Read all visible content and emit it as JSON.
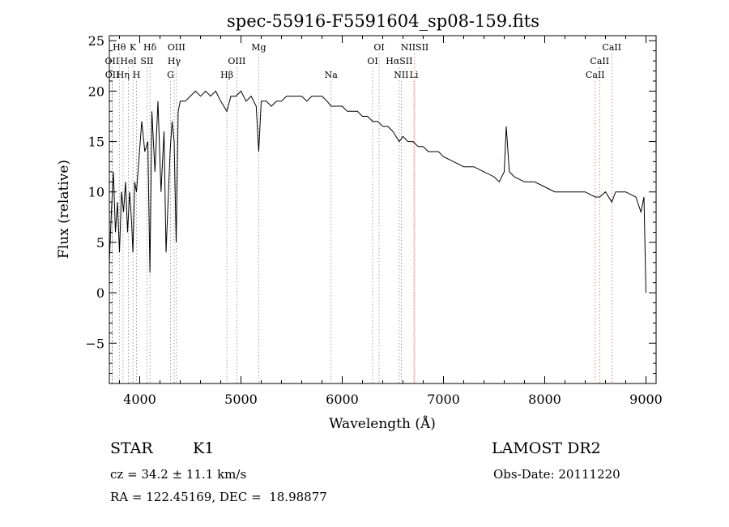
{
  "chart_data": {
    "type": "line",
    "title": "spec-55916-F5591604_sp08-159.fits",
    "xlabel": "Wavelength (Å)",
    "ylabel": "Flux (relative)",
    "xlim": [
      3700,
      9100
    ],
    "ylim": [
      -9,
      25.5
    ],
    "xticks": [
      4000,
      5000,
      6000,
      7000,
      8000,
      9000
    ],
    "yticks": [
      -5,
      0,
      5,
      10,
      15,
      20,
      25
    ],
    "grid": false,
    "series": [
      {
        "x": [
          3700,
          3720,
          3740,
          3760,
          3780,
          3800,
          3820,
          3840,
          3860,
          3880,
          3900,
          3920,
          3933,
          3950,
          3968,
          3990,
          4020,
          4050,
          4080,
          4101,
          4120,
          4150,
          4180,
          4210,
          4240,
          4260,
          4280,
          4300,
          4320,
          4340,
          4360,
          4380,
          4400,
          4450,
          4500,
          4550,
          4600,
          4650,
          4700,
          4750,
          4800,
          4861,
          4900,
          4950,
          5000,
          5050,
          5100,
          5150,
          5175,
          5200,
          5250,
          5300,
          5350,
          5400,
          5450,
          5500,
          5550,
          5600,
          5650,
          5700,
          5750,
          5800,
          5850,
          5890,
          5950,
          6000,
          6050,
          6100,
          6150,
          6200,
          6250,
          6300,
          6350,
          6400,
          6450,
          6500,
          6563,
          6600,
          6650,
          6700,
          6750,
          6800,
          6850,
          6900,
          6950,
          7000,
          7100,
          7200,
          7300,
          7400,
          7500,
          7550,
          7600,
          7620,
          7650,
          7700,
          7800,
          7900,
          8000,
          8100,
          8200,
          8300,
          8400,
          8498,
          8542,
          8600,
          8662,
          8700,
          8800,
          8900,
          8950,
          8980,
          9000
        ],
        "y": [
          3,
          8,
          12,
          6,
          9,
          4,
          10,
          8,
          11,
          6,
          10,
          7,
          4,
          11,
          10,
          13,
          17,
          14,
          15,
          2,
          18,
          12,
          19,
          10,
          16,
          4,
          9,
          14,
          17,
          15,
          5,
          18,
          19,
          19,
          19.5,
          20,
          19.5,
          20,
          19.5,
          20,
          19,
          18,
          19.5,
          19.5,
          20,
          19,
          19.5,
          18.5,
          14,
          19,
          19,
          18.5,
          19,
          19,
          19.5,
          19.5,
          19.5,
          19.5,
          19,
          19.5,
          19.5,
          19.5,
          19,
          18.5,
          18.5,
          18.5,
          18,
          18,
          18,
          17.5,
          17.5,
          17,
          17,
          16.5,
          16.5,
          16,
          15,
          15.5,
          15,
          15,
          14.5,
          14.5,
          14,
          14,
          14,
          13.5,
          13,
          12.5,
          12.5,
          12,
          11.5,
          11,
          12,
          16.5,
          12,
          11.5,
          11,
          11,
          10.5,
          10,
          10,
          10,
          10,
          9.5,
          9.5,
          10,
          9,
          10,
          10,
          9.5,
          8,
          9.5,
          0
        ]
      }
    ],
    "lines": [
      {
        "label": "Hθ",
        "x": 3798,
        "row": 1
      },
      {
        "label": "K",
        "x": 3933,
        "row": 1
      },
      {
        "label": "Hδ",
        "x": 4101,
        "row": 1
      },
      {
        "label": "OIII",
        "x": 4363,
        "row": 1
      },
      {
        "label": "Mg",
        "x": 5175,
        "row": 1
      },
      {
        "label": "OI",
        "x": 6364,
        "row": 1
      },
      {
        "label": "NIISII",
        "x": 6716,
        "row": 1
      },
      {
        "label": "CaII",
        "x": 8662,
        "row": 1
      },
      {
        "label": "OII",
        "x": 3727,
        "row": 2
      },
      {
        "label": "HeI",
        "x": 3889,
        "row": 2
      },
      {
        "label": "SII",
        "x": 4072,
        "row": 2
      },
      {
        "label": "Hγ",
        "x": 4340,
        "row": 2
      },
      {
        "label": "OIII",
        "x": 4959,
        "row": 2
      },
      {
        "label": "OI",
        "x": 6300,
        "row": 2
      },
      {
        "label": "HαSII",
        "x": 6563,
        "row": 2
      },
      {
        "label": "CaII",
        "x": 8542,
        "row": 2
      },
      {
        "label": "OII",
        "x": 3729,
        "row": 3
      },
      {
        "label": "Hη",
        "x": 3835,
        "row": 3
      },
      {
        "label": "H",
        "x": 3968,
        "row": 3
      },
      {
        "label": "G",
        "x": 4304,
        "row": 3
      },
      {
        "label": "Hβ",
        "x": 4861,
        "row": 3
      },
      {
        "label": "Na",
        "x": 5890,
        "row": 3
      },
      {
        "label": "NII",
        "x": 6583,
        "row": 3
      },
      {
        "label": "Li",
        "x": 6708,
        "row": 3
      },
      {
        "label": "CaII",
        "x": 8498,
        "row": 3
      }
    ]
  },
  "info": {
    "class_label": "STAR",
    "subclass": "K1",
    "survey": "LAMOST DR2",
    "cz": "cz = 34.2 ± 11.1 km/s",
    "obs_date": "Obs-Date: 20111220",
    "coords": "RA = 122.45169, DEC =  18.98877"
  }
}
